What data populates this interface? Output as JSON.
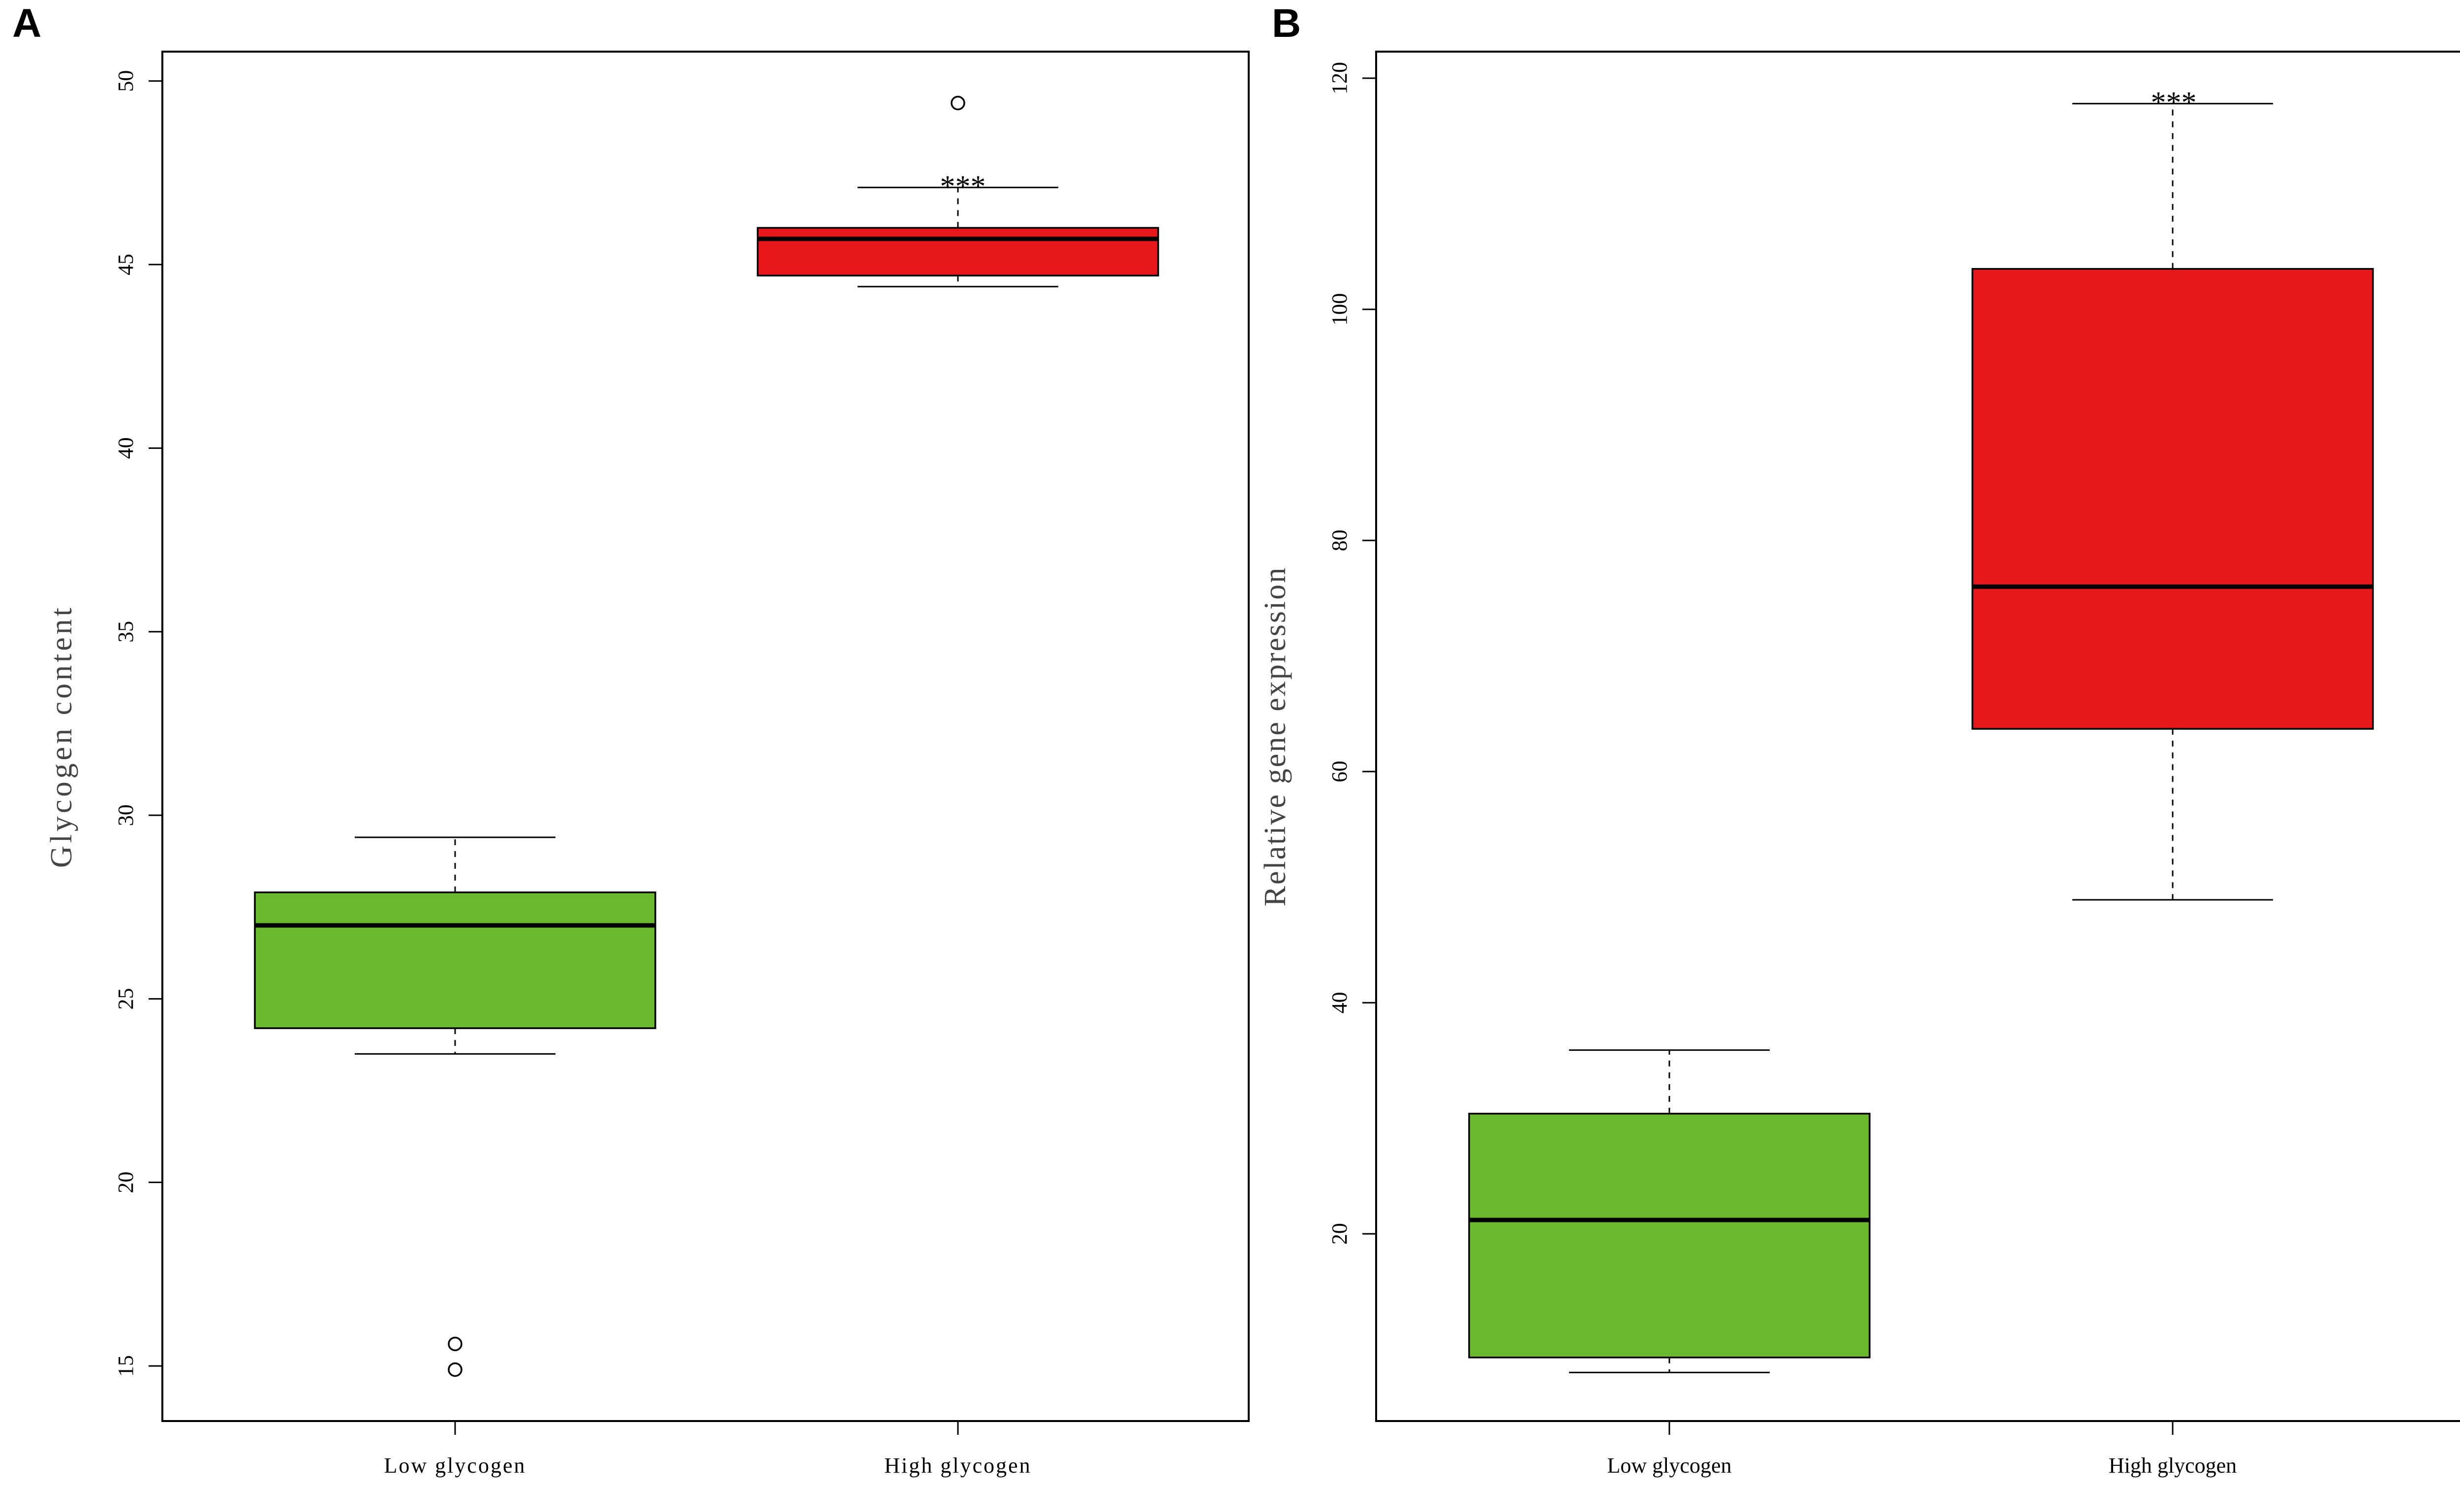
{
  "chart_data": [
    {
      "panel": "A",
      "type": "box",
      "categories": [
        "Low glycogen",
        "High glycogen"
      ],
      "ylabel": "Glycogen content",
      "ylim": [
        13.5,
        50.8
      ],
      "yticks": [
        15,
        20,
        25,
        30,
        35,
        40,
        45,
        50
      ],
      "boxes": [
        {
          "category": "Low glycogen",
          "whisker_low": 23.5,
          "q1": 24.2,
          "median": 27.0,
          "q3": 27.9,
          "whisker_high": 29.4,
          "outliers": [
            15.6,
            14.9
          ],
          "color": "#6ab92d"
        },
        {
          "category": "High glycogen",
          "whisker_low": 44.4,
          "q1": 44.7,
          "median": 45.7,
          "q3": 46.0,
          "whisker_high": 47.1,
          "outliers": [
            49.4
          ],
          "color": "#e8171c",
          "significance": "***"
        }
      ],
      "grid": false,
      "legend": "none"
    },
    {
      "panel": "B",
      "type": "box",
      "categories": [
        "Low glycogen",
        "High glycogen"
      ],
      "ylabel": "Relative gene expression",
      "ylim": [
        3.8,
        122.3
      ],
      "yticks": [
        20,
        40,
        60,
        80,
        100,
        120
      ],
      "boxes": [
        {
          "category": "Low glycogen",
          "whisker_low": 8.0,
          "q1": 9.3,
          "median": 21.2,
          "q3": 30.4,
          "whisker_high": 35.9,
          "outliers": [],
          "color": "#6ab92d"
        },
        {
          "category": "High glycogen",
          "whisker_low": 48.9,
          "q1": 63.7,
          "median": 76.0,
          "q3": 103.5,
          "whisker_high": 117.8,
          "outliers": [],
          "color": "#e8171c",
          "significance": "***"
        }
      ],
      "grid": false,
      "legend": "none"
    }
  ]
}
